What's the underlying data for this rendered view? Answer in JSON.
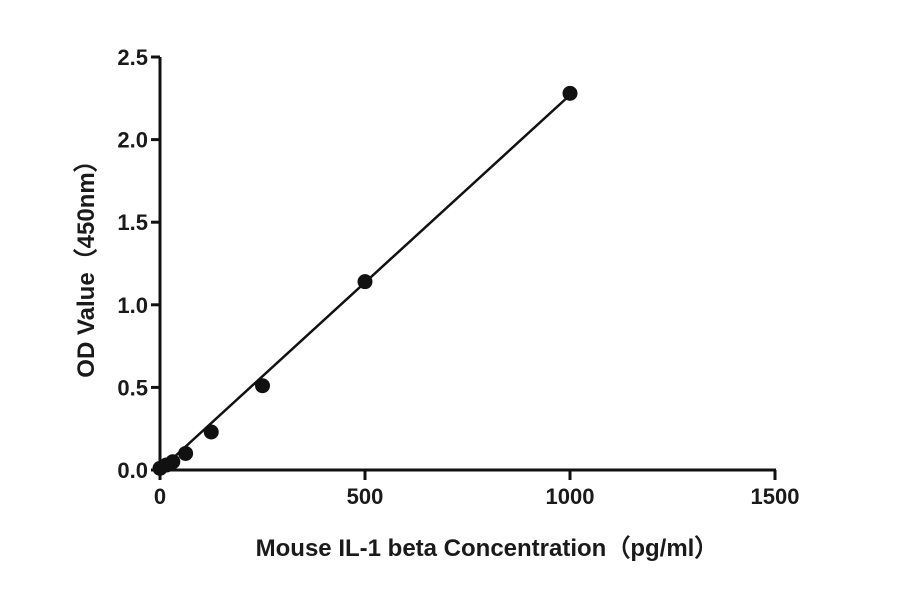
{
  "chart_data": {
    "type": "scatter",
    "xlabel": "Mouse IL-1 beta  Concentration（pg/ml）",
    "ylabel": "OD Value（450nm）",
    "xlim": [
      0,
      1500
    ],
    "ylim": [
      0,
      2.5
    ],
    "x_ticks": [
      0,
      500,
      1000,
      1500
    ],
    "x_tick_labels": [
      "0",
      "500",
      "1000",
      "1500"
    ],
    "y_ticks": [
      0,
      0.5,
      1.0,
      1.5,
      2.0,
      2.5
    ],
    "y_tick_labels": [
      "0.0",
      "0.5",
      "1.0",
      "1.5",
      "2.0",
      "2.5"
    ],
    "grid": false,
    "series": [
      {
        "points": [
          {
            "x": 0,
            "y": 0.01
          },
          {
            "x": 15.6,
            "y": 0.03
          },
          {
            "x": 31.25,
            "y": 0.05
          },
          {
            "x": 62.5,
            "y": 0.1
          },
          {
            "x": 125,
            "y": 0.23
          },
          {
            "x": 250,
            "y": 0.51
          },
          {
            "x": 500,
            "y": 1.14
          },
          {
            "x": 1000,
            "y": 2.28
          }
        ],
        "fit_line": {
          "x_start": 0,
          "y_start": 0.0,
          "x_end": 1000,
          "y_end": 2.27
        },
        "color": "#111111"
      }
    ]
  }
}
